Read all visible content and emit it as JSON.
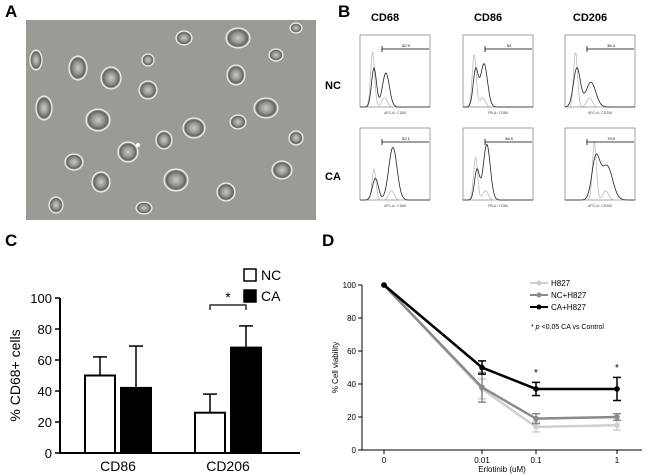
{
  "panels": {
    "a": "A",
    "b": "B",
    "c": "C",
    "d": "D"
  },
  "flow": {
    "columns": [
      "CD68",
      "CD86",
      "CD206"
    ],
    "rows": [
      {
        "label": "NC",
        "gates": [
          "62.9",
          "52",
          "36.4"
        ]
      },
      {
        "label": "CA",
        "gates": [
          "52.1",
          "46.5",
          "79.9"
        ]
      }
    ],
    "x_axis_labels": [
      "APC-A:: CD68",
      "PB-A:: CD86",
      "APC-A:: CD206"
    ]
  },
  "chart_c": {
    "type": "bar",
    "categories": [
      "CD86",
      "CD206"
    ],
    "series": [
      {
        "name": "NC",
        "values": [
          50,
          26
        ],
        "errors": [
          12,
          12
        ],
        "color": "#ffffff"
      },
      {
        "name": "CA",
        "values": [
          42,
          68
        ],
        "errors": [
          27,
          14
        ],
        "color": "#000000"
      }
    ],
    "ylabel": "% CD68+ cells",
    "ylim": [
      0,
      100
    ],
    "yticks": [
      0,
      20,
      40,
      60,
      80,
      100
    ],
    "significance": "*",
    "legend_position": "top-right"
  },
  "chart_d": {
    "type": "line",
    "x": [
      "0",
      "0.01",
      "0.1",
      "1"
    ],
    "series": [
      {
        "name": "H827",
        "values": [
          100,
          37,
          14,
          15
        ],
        "errors": [
          0,
          6,
          3,
          3
        ],
        "color": "#cfcfcf"
      },
      {
        "name": "NC+H827",
        "values": [
          100,
          38,
          19,
          20
        ],
        "errors": [
          0,
          9,
          3,
          2
        ],
        "color": "#8a8a8a"
      },
      {
        "name": "CA+H827",
        "values": [
          100,
          50,
          37,
          37
        ],
        "errors": [
          0,
          4,
          4,
          7
        ],
        "color": "#000000"
      }
    ],
    "xlabel": "Erlotinib (uM)",
    "ylabel": "% Cell viability",
    "ylim": [
      0,
      100
    ],
    "yticks": [
      0,
      20,
      40,
      60,
      80,
      100
    ],
    "note_star": "*",
    "note_p": "p",
    "note_rest": "<0.05 CA vs Control",
    "stars": [
      "*",
      "*"
    ],
    "legend_position": "top-right"
  }
}
